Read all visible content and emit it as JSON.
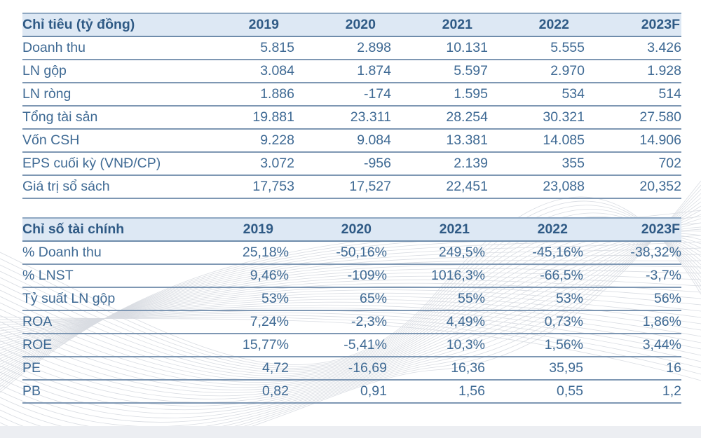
{
  "table1": {
    "headers": [
      "Chỉ tiêu (tỷ đồng)",
      "2019",
      "2020",
      "2021",
      "2022",
      "2023F"
    ],
    "rows": [
      {
        "label": "Doanh thu",
        "values": [
          "5.815",
          "2.898",
          "10.131",
          "5.555",
          "3.426"
        ]
      },
      {
        "label": "LN gộp",
        "values": [
          "3.084",
          "1.874",
          "5.597",
          "2.970",
          "1.928"
        ]
      },
      {
        "label": "LN ròng",
        "values": [
          "1.886",
          "-174",
          "1.595",
          "534",
          "514"
        ]
      },
      {
        "label": "Tổng tài sản",
        "values": [
          "19.881",
          "23.311",
          "28.254",
          "30.321",
          "27.580"
        ]
      },
      {
        "label": "Vốn CSH",
        "values": [
          "9.228",
          "9.084",
          "13.381",
          "14.085",
          "14.906"
        ]
      },
      {
        "label": "EPS cuối kỳ (VNĐ/CP)",
        "values": [
          "3.072",
          "-956",
          "2.139",
          "355",
          "702"
        ]
      },
      {
        "label": "Giá trị sổ sách",
        "values": [
          "17,753",
          "17,527",
          "22,451",
          "23,088",
          "20,352"
        ]
      }
    ]
  },
  "table2": {
    "headers": [
      "Chỉ số tài chính",
      "2019",
      "2020",
      "2021",
      "2022",
      "2023F"
    ],
    "rows": [
      {
        "label": "% Doanh thu",
        "values": [
          "25,18%",
          "-50,16%",
          "249,5%",
          "-45,16%",
          "-38,32%"
        ]
      },
      {
        "label": "% LNST",
        "values": [
          "9,46%",
          "-109%",
          "1016,3%",
          "-66,5%",
          "-3,7%"
        ]
      },
      {
        "label": "Tỷ suất LN gộp",
        "values": [
          "53%",
          "65%",
          "55%",
          "53%",
          "56%"
        ]
      },
      {
        "label": "ROA",
        "values": [
          "7,24%",
          "-2,3%",
          "4,49%",
          "0,73%",
          "1,86%"
        ]
      },
      {
        "label": "ROE",
        "values": [
          "15,77%",
          "-5,41%",
          "10,3%",
          "1,56%",
          "3,44%"
        ]
      },
      {
        "label": "PE",
        "values": [
          "4,72",
          "-16,69",
          "16,36",
          "35,95",
          "16"
        ]
      },
      {
        "label": "PB",
        "values": [
          "0,82",
          "0,91",
          "1,56",
          "0,55",
          "1,2"
        ]
      }
    ]
  },
  "colors": {
    "header_bg": "#dde8f4",
    "text": "#3f6a94",
    "header_text": "#2f5a85",
    "rule": "#7e97b3"
  }
}
